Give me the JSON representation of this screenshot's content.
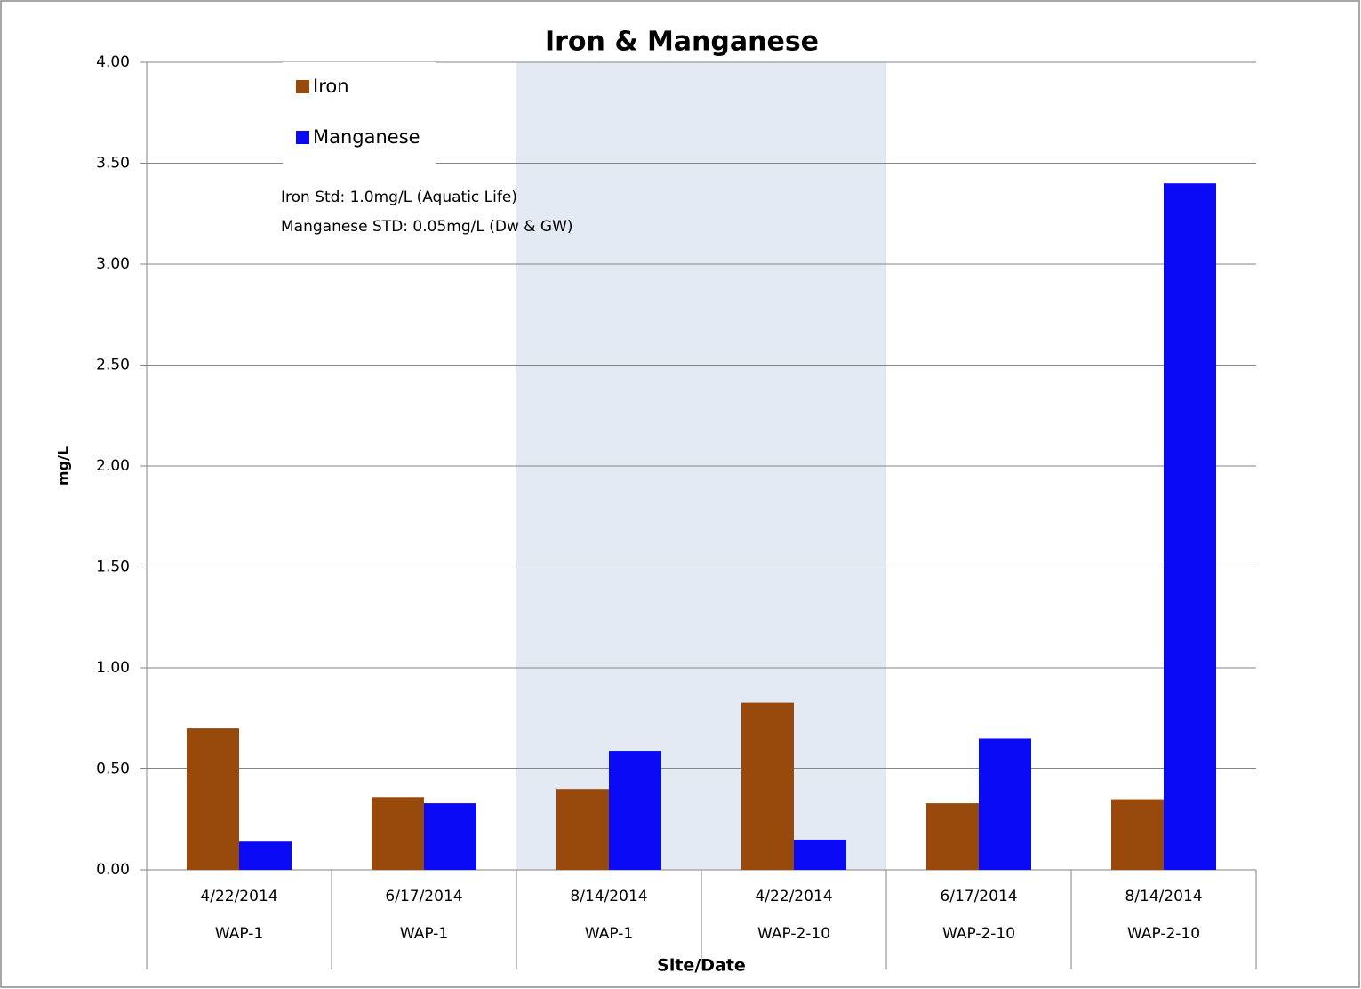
{
  "chart_data": {
    "type": "bar",
    "title": "Iron & Manganese",
    "x_label": "Site/Date",
    "y_label": "mg/L",
    "categories": [
      "4/22/2014",
      "6/17/2014",
      "8/14/2014",
      "4/22/2014",
      "6/17/2014",
      "8/14/2014"
    ],
    "category_groups": [
      "WAP-1",
      "WAP-1",
      "WAP-1",
      "WAP-2-10",
      "WAP-2-10",
      "WAP-2-10"
    ],
    "series": [
      {
        "name": "Iron",
        "color": "#974a0c",
        "values": [
          0.7,
          0.36,
          0.4,
          0.83,
          0.33,
          0.35
        ]
      },
      {
        "name": "Manganese",
        "color": "#0a0af5",
        "values": [
          0.14,
          0.33,
          0.59,
          0.15,
          0.65,
          3.4
        ]
      }
    ],
    "annotations": [
      "Iron Std: 1.0mg/L (Aquatic Life)",
      "Manganese STD: 0.05mg/L (Dw & GW)"
    ],
    "shaded_categories": [
      2,
      3
    ],
    "shade_color": "#e4eaf4",
    "ylim": [
      0,
      4
    ],
    "yticks": [
      {
        "value": 0,
        "label": "0.00"
      },
      {
        "value": 0.5,
        "label": "0.50"
      },
      {
        "value": 1,
        "label": "1.00"
      },
      {
        "value": 1.5,
        "label": "1.50"
      },
      {
        "value": 2,
        "label": "2.00"
      },
      {
        "value": 2.5,
        "label": "2.50"
      },
      {
        "value": 3,
        "label": "3.00"
      },
      {
        "value": 3.5,
        "label": "3.50"
      },
      {
        "value": 4,
        "label": "4.00"
      }
    ],
    "grid": true,
    "legend": "top-left"
  }
}
